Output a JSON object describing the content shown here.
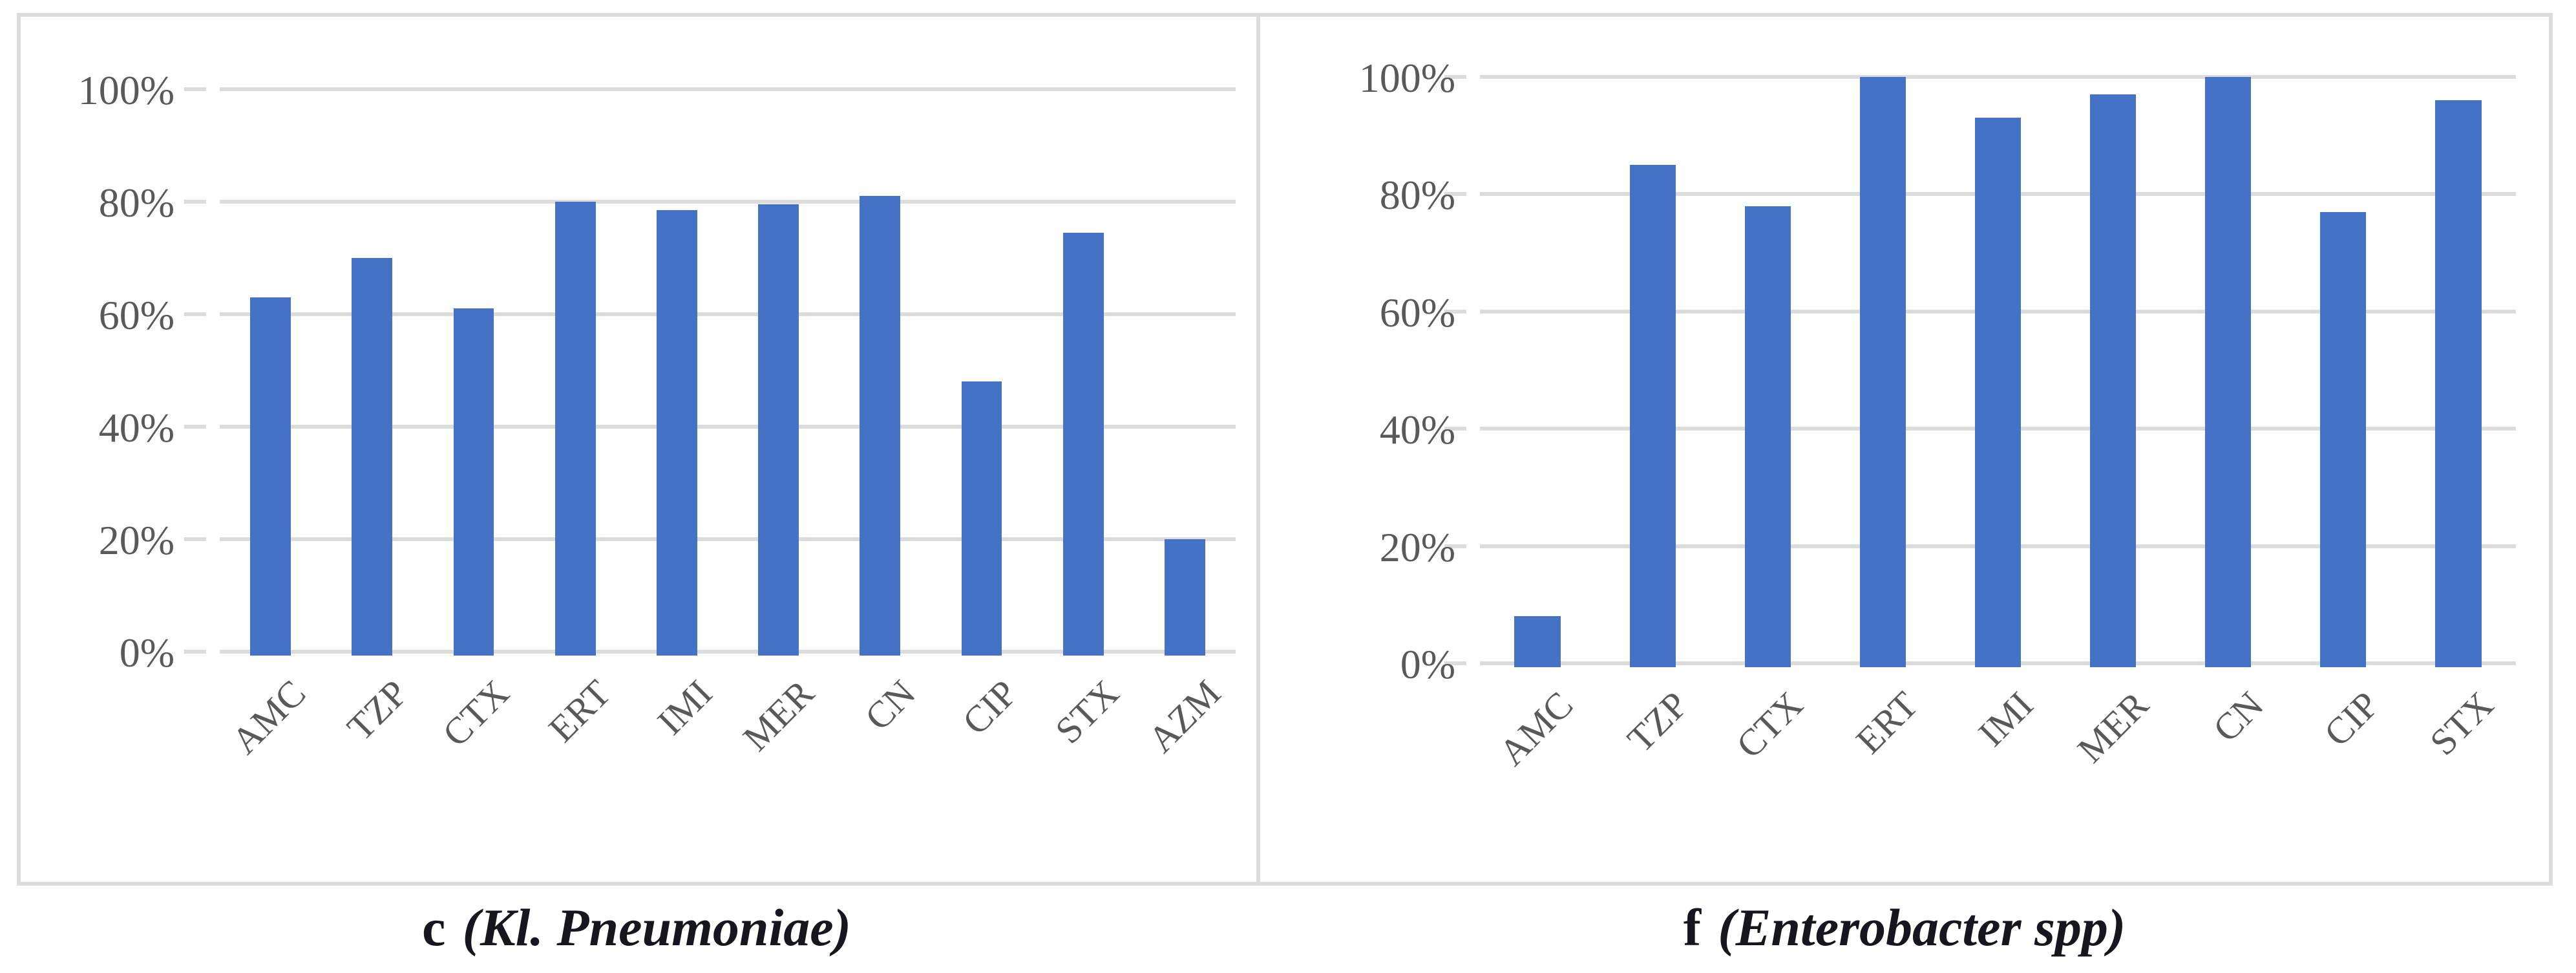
{
  "palette": {
    "bar_color": "#4472C4",
    "gridline_color": "#DCDCDC",
    "panel_border_color": "#DCDCDC",
    "axis_text_color": "#595959",
    "caption_color": "#16161e"
  },
  "chart_data": [
    {
      "type": "bar",
      "title": "",
      "xlabel": "",
      "ylabel": "",
      "caption_letter": "c",
      "caption_species": "(Kl. Pneumoniae)",
      "categories": [
        "AMC",
        "TZP",
        "CTX",
        "ERT",
        "IMI",
        "MER",
        "CN",
        "CIP",
        "STX",
        "AZM"
      ],
      "values": [
        63,
        70,
        61,
        80,
        78.5,
        79.5,
        81,
        48,
        74.5,
        20
      ],
      "y_tick_labels": [
        "0%",
        "20%",
        "40%",
        "60%",
        "80%",
        "100%"
      ],
      "ylim": [
        0,
        100
      ],
      "grid": true,
      "legend": false
    },
    {
      "type": "bar",
      "title": "",
      "xlabel": "",
      "ylabel": "",
      "caption_letter": "f",
      "caption_species": "(Enterobacter spp)",
      "categories": [
        "AMC",
        "TZP",
        "CTX",
        "ERT",
        "IMI",
        "MER",
        "CN",
        "CIP",
        "STX"
      ],
      "values": [
        8,
        85,
        78,
        100,
        93,
        97,
        100,
        77,
        96
      ],
      "y_tick_labels": [
        "0%",
        "20%",
        "40%",
        "60%",
        "80%",
        "100%"
      ],
      "ylim": [
        0,
        100
      ],
      "grid": true,
      "legend": false
    }
  ]
}
